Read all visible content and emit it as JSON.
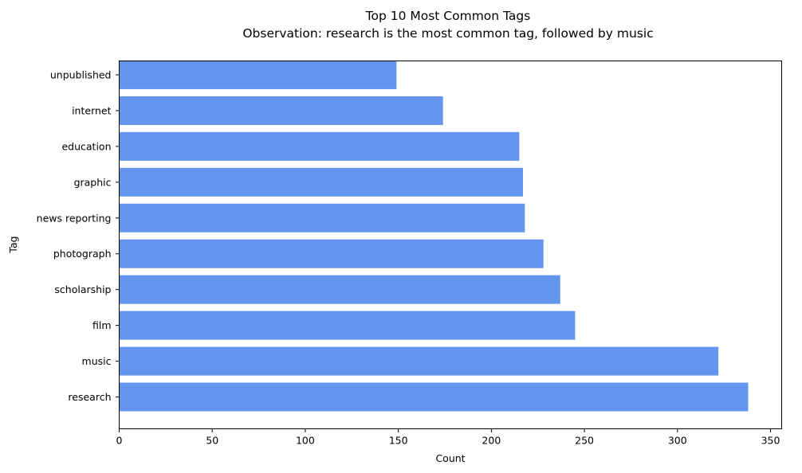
{
  "chart_data": {
    "type": "bar",
    "orientation": "horizontal",
    "title": "Top 10 Most Common Tags",
    "subtitle": "Observation: research is the most common tag, followed by music",
    "xlabel": "Count",
    "ylabel": "Tag",
    "xlim": [
      0,
      356
    ],
    "xticks": [
      0,
      50,
      100,
      150,
      200,
      250,
      300,
      350
    ],
    "categories": [
      "research",
      "music",
      "film",
      "scholarship",
      "photograph",
      "news reporting",
      "graphic",
      "education",
      "internet",
      "unpublished"
    ],
    "values": [
      338,
      322,
      245,
      237,
      228,
      218,
      217,
      215,
      174,
      149
    ],
    "bar_color": "#6495ed",
    "grid": false
  }
}
